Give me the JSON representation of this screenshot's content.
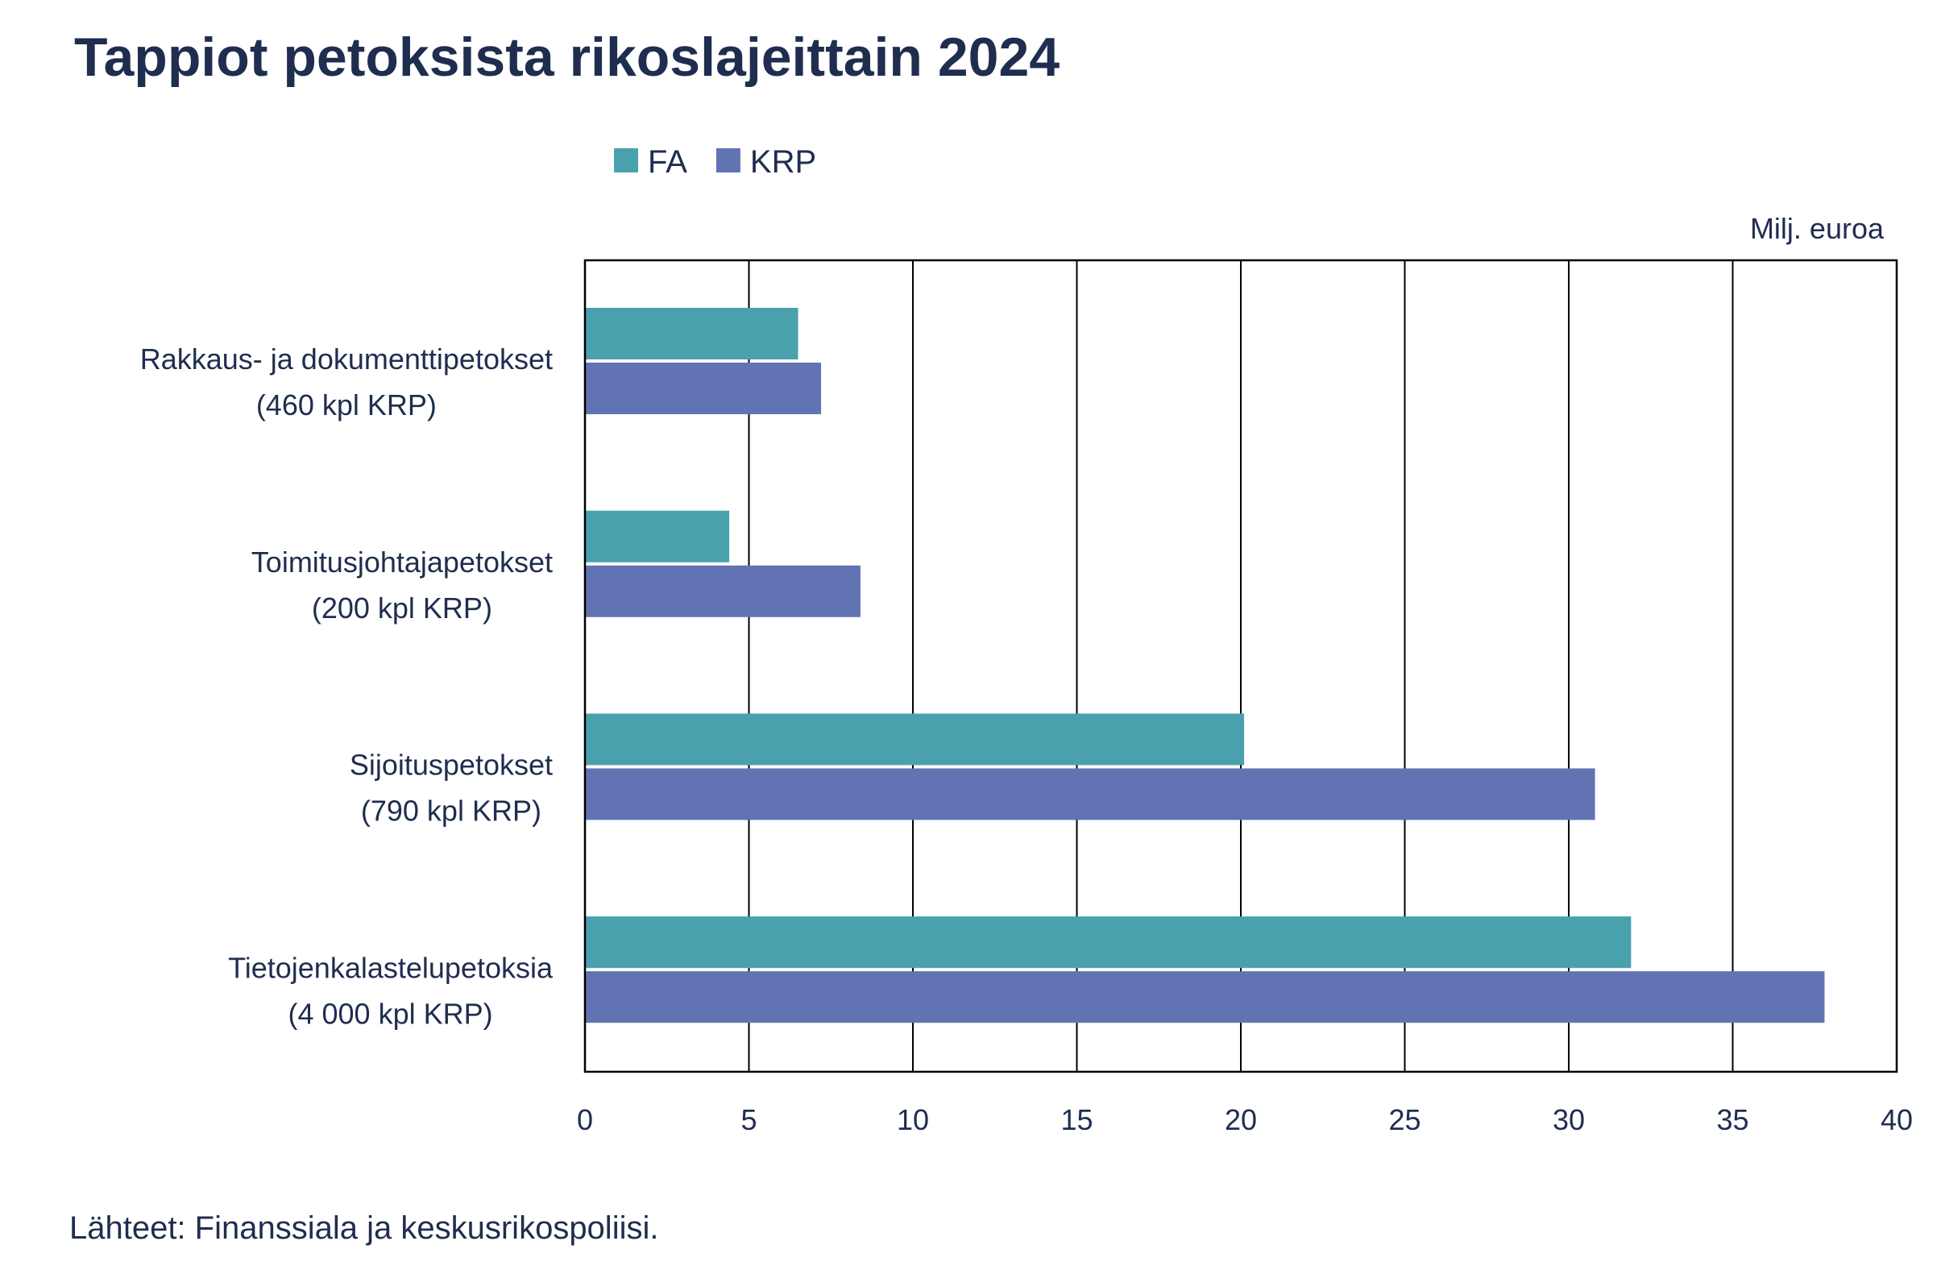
{
  "chart_data": {
    "type": "bar",
    "orientation": "horizontal",
    "title": "Tappiot petoksista rikoslajeittain 2024",
    "unit_label": "Milj. euroa",
    "source": "Lähteet: Finanssiala ja keskusrikospoliisi.",
    "categories": [
      [
        "Rakkaus- ja dokumenttipetokset",
        "(460 kpl KRP)"
      ],
      [
        "Toimitusjohtajapetokset",
        "(200 kpl KRP)"
      ],
      [
        "Sijoituspetokset",
        "(790 kpl KRP)"
      ],
      [
        "Tietojenkalastelupetoksia",
        "(4 000 kpl KRP)"
      ]
    ],
    "series": [
      {
        "name": "FA",
        "color": "#4aa1ae",
        "values": [
          6.5,
          4.4,
          20.1,
          31.9
        ]
      },
      {
        "name": "KRP",
        "color": "#6173b2",
        "values": [
          7.2,
          8.4,
          30.8,
          37.8
        ]
      }
    ],
    "xlim": [
      0,
      40
    ],
    "xticks": [
      "0",
      "5",
      "10",
      "15",
      "20",
      "25",
      "30",
      "35",
      "40"
    ],
    "grid": "vertical",
    "legend": "top"
  }
}
